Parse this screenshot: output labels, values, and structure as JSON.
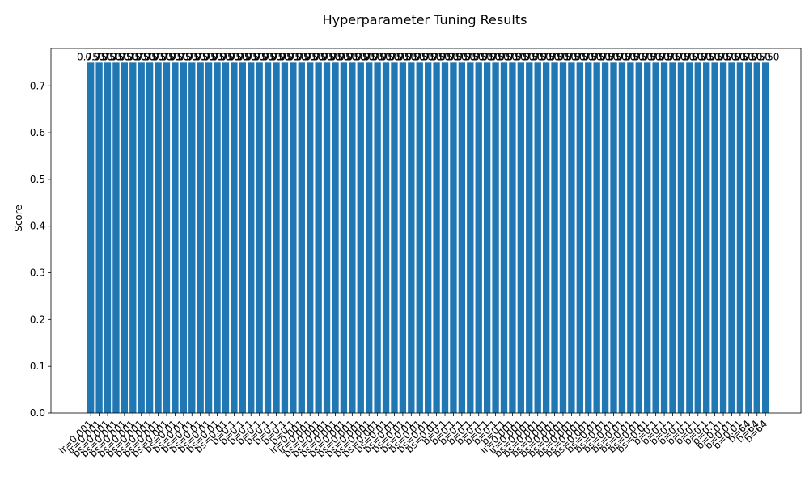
{
  "chart_data": {
    "type": "bar",
    "title": "Hyperparameter Tuning Results",
    "xlabel": "",
    "ylabel": "Score",
    "ylim": [
      0,
      0.78
    ],
    "yticks": [
      "0.0",
      "0.1",
      "0.2",
      "0.3",
      "0.4",
      "0.5",
      "0.6",
      "0.7"
    ],
    "grid": false,
    "bar_color": "#1f77b4",
    "categories": [
      "lr=0.001",
      "lr=0.001",
      "bs=0.001",
      "bs=0.001",
      "bs=0.001",
      "bs=0.001",
      "bs=0.001",
      "bs=0.001",
      "bs=0.001",
      "bs=0.001",
      "bs=0.01",
      "bs=0.01",
      "bs=0.01",
      "bs=0.01",
      "bs=0.01",
      "bs=0.01",
      "bs=0.01",
      "b=0.1",
      "b=0.1",
      "b=0.1",
      "b=0.1",
      "b=0.1",
      "b=0.1",
      "b=0.1",
      "b=0.1",
      "lr=0.001",
      "lr=0.001",
      "bs=0.001",
      "bs=0.001",
      "bs=0.001",
      "bs=0.001",
      "bs=0.001",
      "bs=0.001",
      "bs=0.001",
      "bs=0.001",
      "bs=0.01",
      "bs=0.01",
      "bs=0.01",
      "bs=0.01",
      "bs=0.01",
      "bs=0.01",
      "bs=0.01",
      "b=0.1",
      "b=0.1",
      "b=0.1",
      "b=0.1",
      "b=0.1",
      "b=0.1",
      "b=0.1",
      "b=0.1",
      "lr=0.001",
      "lr=0.001",
      "bs=0.001",
      "bs=0.001",
      "bs=0.001",
      "bs=0.001",
      "bs=0.001",
      "bs=0.001",
      "bs=0.001",
      "bs=0.001",
      "bs=0.01",
      "bs=0.01",
      "bs=0.01",
      "bs=0.01",
      "bs=0.01",
      "bs=0.01",
      "bs=0.01",
      "b=0.1",
      "b=0.1",
      "b=0.1",
      "b=0.1",
      "b=0.1",
      "b=0.1",
      "b=0.1",
      "b=0.1",
      "b=0.01",
      "b=0.01",
      "b=0.01",
      "b=64",
      "b=64",
      "b=64"
    ],
    "values": [
      0.75,
      0.75,
      0.75,
      0.75,
      0.75,
      0.75,
      0.75,
      0.75,
      0.75,
      0.75,
      0.75,
      0.75,
      0.75,
      0.75,
      0.75,
      0.75,
      0.75,
      0.75,
      0.75,
      0.75,
      0.75,
      0.75,
      0.75,
      0.75,
      0.75,
      0.75,
      0.75,
      0.75,
      0.75,
      0.75,
      0.75,
      0.75,
      0.75,
      0.75,
      0.75,
      0.75,
      0.75,
      0.75,
      0.75,
      0.75,
      0.75,
      0.75,
      0.75,
      0.75,
      0.75,
      0.75,
      0.75,
      0.75,
      0.75,
      0.75,
      0.75,
      0.75,
      0.75,
      0.75,
      0.75,
      0.75,
      0.75,
      0.75,
      0.75,
      0.75,
      0.75,
      0.75,
      0.75,
      0.75,
      0.75,
      0.75,
      0.75,
      0.75,
      0.75,
      0.75,
      0.75,
      0.75,
      0.75,
      0.75,
      0.75,
      0.75,
      0.75,
      0.75,
      0.75,
      0.75,
      0.75
    ],
    "value_labels": [
      "0.750",
      "0.750",
      "0.750",
      "0.750",
      "0.750",
      "0.750",
      "0.750",
      "0.750",
      "0.750",
      "0.750",
      "0.750",
      "0.750",
      "0.750",
      "0.750",
      "0.750",
      "0.750",
      "0.750",
      "0.750",
      "0.750",
      "0.750",
      "0.750",
      "0.750",
      "0.750",
      "0.750",
      "0.750",
      "0.750",
      "0.750",
      "0.750",
      "0.750",
      "0.750",
      "0.750",
      "0.750",
      "0.750",
      "0.750",
      "0.750",
      "0.750",
      "0.750",
      "0.750",
      "0.750",
      "0.750",
      "0.750",
      "0.750",
      "0.750",
      "0.750",
      "0.750",
      "0.750",
      "0.750",
      "0.750",
      "0.750",
      "0.750",
      "0.750",
      "0.750",
      "0.750",
      "0.750",
      "0.750",
      "0.750",
      "0.750",
      "0.750",
      "0.750",
      "0.750",
      "0.750",
      "0.750",
      "0.750",
      "0.750",
      "0.750",
      "0.750",
      "0.750",
      "0.750",
      "0.750",
      "0.750",
      "0.750",
      "0.750",
      "0.750",
      "0.750",
      "0.750",
      "0.750",
      "0.750",
      "0.750",
      "0.750",
      "0.750",
      "0.750"
    ]
  }
}
